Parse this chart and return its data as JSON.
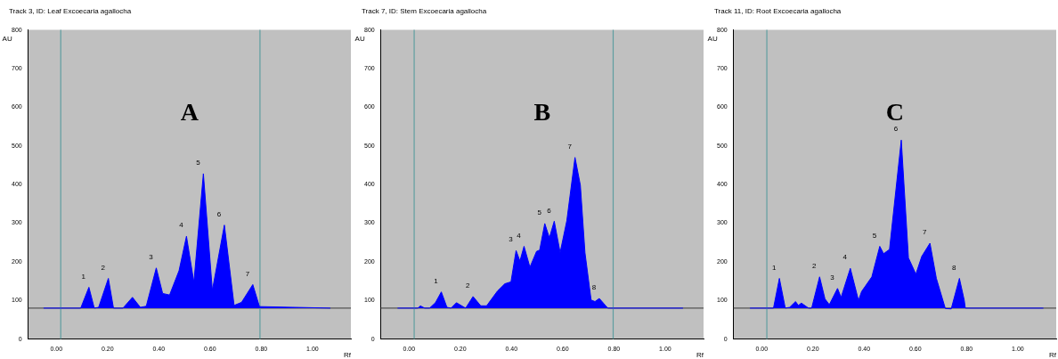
{
  "chart_data": [
    {
      "type": "area",
      "title": "Track 3, ID: Leaf Excoecaria agallocha",
      "xlabel": "Rf",
      "ylabel": "AU",
      "xlim": [
        -0.11,
        1.15
      ],
      "ylim": [
        0,
        800
      ],
      "xticks": [
        {
          "value": 0,
          "label": "0.00"
        },
        {
          "value": 0.2,
          "label": "0.20"
        },
        {
          "value": 0.4,
          "label": "0.40"
        },
        {
          "value": 0.6,
          "label": "0.60"
        },
        {
          "value": 0.8,
          "label": "0.80"
        },
        {
          "value": 1,
          "label": "1.00"
        }
      ],
      "yticks": [
        0,
        100,
        200,
        300,
        400,
        500,
        600,
        700,
        800
      ],
      "grid": false,
      "legend": false,
      "marker": "none",
      "series": [
        {
          "color": "#0000ff",
          "x": [
            -0.05,
            0.095,
            0.127,
            0.148,
            0.165,
            0.203,
            0.223,
            0.26,
            0.297,
            0.328,
            0.351,
            0.39,
            0.415,
            0.442,
            0.479,
            0.508,
            0.537,
            0.574,
            0.609,
            0.656,
            0.694,
            0.723,
            0.767,
            0.793,
            1.07
          ],
          "values": [
            80,
            80,
            134,
            80,
            82,
            157,
            80,
            80,
            108,
            82,
            85,
            184,
            118,
            114,
            177,
            266,
            147,
            428,
            126,
            295,
            87,
            95,
            141,
            84,
            80
          ]
        }
      ],
      "ref_lines": [
        {
          "axis": "y",
          "value": 80,
          "color": "#555555"
        },
        {
          "axis": "x",
          "value": 0.017,
          "color": "#5f9ea0"
        },
        {
          "axis": "x",
          "value": 0.795,
          "color": "#5f9ea0"
        }
      ],
      "annotations": [
        "A",
        {
          "text": "1",
          "x": 0.127,
          "y": 134
        },
        {
          "text": "2",
          "x": 0.203,
          "y": 157
        },
        {
          "text": "3",
          "x": 0.39,
          "y": 184
        },
        {
          "text": "4",
          "x": 0.508,
          "y": 266
        },
        {
          "text": "5",
          "x": 0.574,
          "y": 428
        },
        {
          "text": "6",
          "x": 0.656,
          "y": 295
        },
        {
          "text": "7",
          "x": 0.767,
          "y": 141
        }
      ]
    },
    {
      "type": "area",
      "title": "Track 7, ID: Stem Excoecaria agallocha",
      "xlabel": "Rf",
      "ylabel": "AU",
      "xlim": [
        -0.11,
        1.15
      ],
      "ylim": [
        0,
        800
      ],
      "xticks": [
        {
          "value": 0,
          "label": "0.00"
        },
        {
          "value": 0.2,
          "label": "0.20"
        },
        {
          "value": 0.4,
          "label": "0.40"
        },
        {
          "value": 0.6,
          "label": "0.60"
        },
        {
          "value": 0.8,
          "label": "0.80"
        },
        {
          "value": 1,
          "label": "1.00"
        }
      ],
      "yticks": [
        0,
        100,
        200,
        300,
        400,
        500,
        600,
        700,
        800
      ],
      "grid": false,
      "legend": false,
      "marker": "none",
      "series": [
        {
          "color": "#0000ff",
          "x": [
            -0.045,
            0.035,
            0.044,
            0.061,
            0.08,
            0.103,
            0.126,
            0.148,
            0.164,
            0.185,
            0.221,
            0.25,
            0.28,
            0.303,
            0.345,
            0.374,
            0.398,
            0.418,
            0.433,
            0.449,
            0.472,
            0.498,
            0.51,
            0.53,
            0.548,
            0.567,
            0.59,
            0.616,
            0.648,
            0.669,
            0.687,
            0.711,
            0.726,
            0.743,
            0.776,
            1.07
          ],
          "values": [
            80,
            80,
            86,
            80,
            80,
            94,
            122,
            82,
            80,
            94,
            80,
            110,
            86,
            86,
            124,
            143,
            148,
            229,
            202,
            240,
            186,
            227,
            230,
            299,
            262,
            305,
            224,
            306,
            470,
            398,
            223,
            101,
            97,
            105,
            80,
            80
          ]
        }
      ],
      "ref_lines": [
        {
          "axis": "y",
          "value": 80,
          "color": "#555555"
        },
        {
          "axis": "x",
          "value": 0.02,
          "color": "#5f9ea0"
        },
        {
          "axis": "x",
          "value": 0.797,
          "color": "#5f9ea0"
        }
      ],
      "annotations": [
        "B",
        {
          "text": "1",
          "x": 0.126,
          "y": 122
        },
        {
          "text": "2",
          "x": 0.25,
          "y": 110
        },
        {
          "text": "3",
          "x": 0.418,
          "y": 229
        },
        {
          "text": "4",
          "x": 0.449,
          "y": 240
        },
        {
          "text": "5",
          "x": 0.53,
          "y": 299
        },
        {
          "text": "6",
          "x": 0.567,
          "y": 305
        },
        {
          "text": "7",
          "x": 0.648,
          "y": 470
        },
        {
          "text": "8",
          "x": 0.743,
          "y": 105
        }
      ]
    },
    {
      "type": "area",
      "title": "Track 11, ID: Root Excoecaria agallocha",
      "xlabel": "Rf",
      "ylabel": "AU",
      "xlim": [
        -0.11,
        1.15
      ],
      "ylim": [
        0,
        800
      ],
      "xticks": [
        {
          "value": 0,
          "label": "0.00"
        },
        {
          "value": 0.2,
          "label": "0.20"
        },
        {
          "value": 0.4,
          "label": "0.40"
        },
        {
          "value": 0.6,
          "label": "0.60"
        },
        {
          "value": 0.8,
          "label": "0.80"
        },
        {
          "value": 1,
          "label": "1.00"
        }
      ],
      "yticks": [
        0,
        100,
        200,
        300,
        400,
        500,
        600,
        700,
        800
      ],
      "grid": false,
      "legend": false,
      "marker": "none",
      "series": [
        {
          "color": "#0000ff",
          "x": [
            -0.046,
            0.046,
            0.069,
            0.092,
            0.109,
            0.132,
            0.143,
            0.155,
            0.183,
            0.195,
            0.226,
            0.247,
            0.264,
            0.296,
            0.31,
            0.346,
            0.378,
            0.39,
            0.43,
            0.461,
            0.476,
            0.499,
            0.545,
            0.573,
            0.602,
            0.625,
            0.657,
            0.682,
            0.717,
            0.74,
            0.772,
            0.791,
            0.795,
            1.1
          ],
          "values": [
            80,
            80,
            157,
            80,
            82,
            97,
            87,
            93,
            80,
            80,
            161,
            104,
            89,
            131,
            108,
            183,
            100,
            123,
            161,
            240,
            221,
            232,
            515,
            210,
            168,
            214,
            248,
            157,
            79,
            78,
            157,
            100,
            80,
            80
          ]
        }
      ],
      "ref_lines": [
        {
          "axis": "y",
          "value": 80,
          "color": "#555555"
        },
        {
          "axis": "x",
          "value": 0.02,
          "color": "#5f9ea0"
        }
      ],
      "annotations": [
        "C",
        {
          "text": "1",
          "x": 0.069,
          "y": 157
        },
        {
          "text": "2",
          "x": 0.226,
          "y": 161
        },
        {
          "text": "3",
          "x": 0.296,
          "y": 131
        },
        {
          "text": "4",
          "x": 0.346,
          "y": 183
        },
        {
          "text": "5",
          "x": 0.461,
          "y": 240
        },
        {
          "text": "6",
          "x": 0.545,
          "y": 515
        },
        {
          "text": "7",
          "x": 0.657,
          "y": 248
        },
        {
          "text": "8",
          "x": 0.772,
          "y": 157
        }
      ]
    }
  ]
}
